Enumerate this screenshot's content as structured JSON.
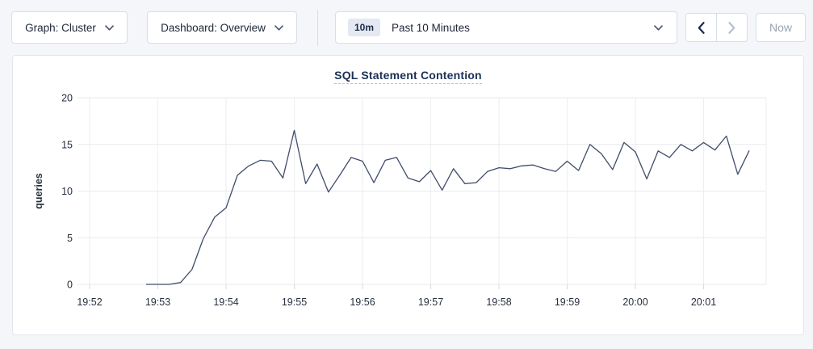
{
  "toolbar": {
    "graph_dropdown": {
      "label": "Graph: Cluster",
      "icon": "chevron-down"
    },
    "dashboard_dropdown": {
      "label": "Dashboard: Overview",
      "icon": "chevron-down"
    },
    "time_window": {
      "badge": "10m",
      "label": "Past 10 Minutes",
      "icon": "chevron-down"
    },
    "prev_button": {
      "icon": "chevron-left",
      "enabled": true
    },
    "next_button": {
      "icon": "chevron-right",
      "enabled": false
    },
    "now_button": {
      "label": "Now",
      "enabled": false
    }
  },
  "colors": {
    "line": "#404c6a",
    "grid_h": "#e9eaee",
    "grid_v": "#edeef2",
    "tick": "#d8dadf",
    "title_accent": "#1b3054",
    "disabled_text": "#9aa3b2"
  },
  "chart_data": {
    "type": "line",
    "title": "SQL Statement Contention",
    "ylabel": "queries",
    "ylim": [
      0,
      20
    ],
    "y_ticks": [
      0,
      5,
      10,
      15,
      20
    ],
    "x_tick_labels": [
      "19:52",
      "19:53",
      "19:54",
      "19:55",
      "19:56",
      "19:57",
      "19:58",
      "19:59",
      "20:00",
      "20:01"
    ],
    "start_time": "19:52:50",
    "start_offset_seconds": 50,
    "interval_seconds": 10,
    "series_name": "queries",
    "values": [
      0,
      0,
      0,
      0.2,
      1.6,
      4.9,
      7.2,
      8.2,
      11.7,
      12.7,
      13.3,
      13.2,
      11.4,
      16.5,
      10.8,
      12.9,
      9.9,
      11.7,
      13.6,
      13.2,
      10.9,
      13.3,
      13.6,
      11.4,
      11.0,
      12.2,
      10.1,
      12.4,
      10.8,
      10.9,
      12.1,
      12.5,
      12.4,
      12.7,
      12.8,
      12.4,
      12.1,
      13.2,
      12.2,
      15.0,
      14.0,
      12.3,
      15.2,
      14.2,
      11.3,
      14.3,
      13.6,
      15.0,
      14.3,
      15.2,
      14.4,
      15.9,
      11.8,
      14.3
    ],
    "grid": true,
    "legend": false
  }
}
